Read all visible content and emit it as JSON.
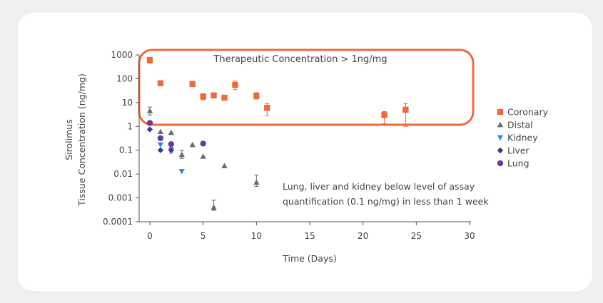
{
  "chart_data": {
    "type": "scatter",
    "xlabel": "Time (Days)",
    "ylabel": [
      "Sirolimus",
      "Tissue Concentration (ng/mg)"
    ],
    "yscale": "log",
    "xlim": [
      -2,
      30
    ],
    "ylim": [
      0.0001,
      1000
    ],
    "xticks": [
      0,
      5,
      10,
      15,
      20,
      25,
      30
    ],
    "xtick_labels": [
      "0",
      "5",
      "10",
      "15",
      "20",
      "25",
      "30"
    ],
    "yticks": [
      1000,
      100,
      10,
      1,
      0.1,
      0.01,
      0.001,
      0.0001
    ],
    "ytick_labels": [
      "1000",
      "100",
      "10",
      "1",
      "0.1",
      "0.01",
      "0.001",
      "0.0001"
    ],
    "legend_position": "right",
    "annotations": {
      "box_label": "Therapeutic Concentration > 1ng/mg",
      "note_line1": "Lung, liver and kidney below level of assay",
      "note_line2": "quantification (0.1 ng/mg) in less than 1 week"
    },
    "series": [
      {
        "name": "Coronary",
        "marker": "square",
        "color": "#ef6a3a",
        "points": [
          {
            "x": 0,
            "y": 600,
            "err": [
              450,
              800
            ]
          },
          {
            "x": 1,
            "y": 65,
            "err": [
              55,
              78
            ]
          },
          {
            "x": 4,
            "y": 60,
            "err": [
              55,
              66
            ]
          },
          {
            "x": 5,
            "y": 18,
            "err": [
              13,
              23
            ]
          },
          {
            "x": 6,
            "y": 20,
            "err": [
              17,
              24
            ]
          },
          {
            "x": 7,
            "y": 16,
            "err": [
              14,
              19
            ]
          },
          {
            "x": 8,
            "y": 55,
            "err": [
              35,
              80
            ]
          },
          {
            "x": 10,
            "y": 19,
            "err": [
              14,
              26
            ]
          },
          {
            "x": 11,
            "y": 6,
            "err": [
              2.8,
              9
            ]
          },
          {
            "x": 22,
            "y": 3,
            "err": [
              1.3,
              4.2
            ]
          },
          {
            "x": 24,
            "y": 5,
            "err": [
              1,
              9
            ]
          }
        ]
      },
      {
        "name": "Distal",
        "marker": "triangle-up",
        "color": "#6b6b6b",
        "points": [
          {
            "x": 0,
            "y": 4.5,
            "err": [
              3,
              6.5
            ]
          },
          {
            "x": 1,
            "y": 0.6
          },
          {
            "x": 2,
            "y": 0.55
          },
          {
            "x": 3,
            "y": 0.065,
            "err": [
              0.045,
              0.1
            ]
          },
          {
            "x": 4,
            "y": 0.17
          },
          {
            "x": 5,
            "y": 0.055
          },
          {
            "x": 6,
            "y": 0.0004,
            "err": [
              0.0003,
              0.0008
            ]
          },
          {
            "x": 7,
            "y": 0.022
          },
          {
            "x": 10,
            "y": 0.0045,
            "err": [
              0.003,
              0.009
            ]
          }
        ]
      },
      {
        "name": "Kidney",
        "marker": "triangle-down",
        "color": "#2a8fd6",
        "points": [
          {
            "x": 1,
            "y": 0.17
          },
          {
            "x": 2,
            "y": 0.1,
            "err": [
              0.075,
              0.13
            ]
          },
          {
            "x": 3,
            "y": 0.013
          }
        ]
      },
      {
        "name": "Liver",
        "marker": "diamond",
        "color": "#3b3a8f",
        "points": [
          {
            "x": 0,
            "y": 0.75
          },
          {
            "x": 1,
            "y": 0.1
          },
          {
            "x": 2,
            "y": 0.1
          }
        ]
      },
      {
        "name": "Lung",
        "marker": "circle",
        "color": "#6b3aa0",
        "points": [
          {
            "x": 0,
            "y": 1.4
          },
          {
            "x": 1,
            "y": 0.32
          },
          {
            "x": 2,
            "y": 0.18
          },
          {
            "x": 5,
            "y": 0.19
          }
        ]
      }
    ]
  },
  "colors": {
    "box_outline": "#ef6a3a",
    "axis": "#555555",
    "card_background": "#ffffff",
    "page_background": "#efefef"
  }
}
